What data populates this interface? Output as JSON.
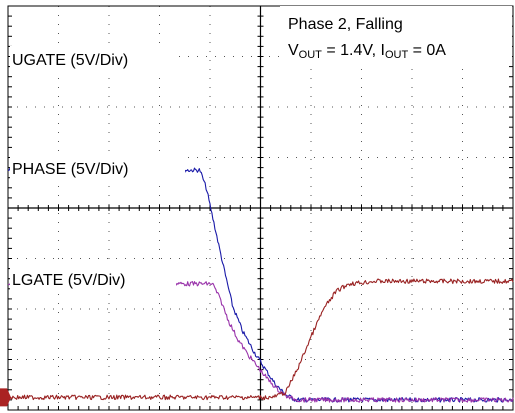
{
  "chart_data": {
    "type": "line",
    "title": "Phase 2, Falling",
    "conditions": {
      "v_symbol": "V",
      "v_sub": "OUT",
      "v_value": " = 1.4V, ",
      "i_symbol": "I",
      "i_sub": "OUT",
      "i_value": " = 0A"
    },
    "grid": {
      "divisions_x": 10,
      "divisions_y": 8,
      "minor_ticks_per_division": 5,
      "shown": true
    },
    "ground_marker_color": "#aa2222",
    "time_axis": {
      "min": 0,
      "max": 10,
      "unit": "div"
    },
    "volt_axis": {
      "min": 0,
      "max": 8,
      "unit": "div"
    },
    "series": [
      {
        "name": "UGATE (5V/Div)",
        "color": "#1a1aa8",
        "x": [
          0,
          7.6,
          7.85,
          8.2,
          8.55,
          8.9,
          9.3,
          9.75,
          10.2,
          10.6,
          11.0,
          11.4,
          20
        ],
        "y": [
          4.75,
          4.75,
          4.4,
          3.6,
          2.8,
          2.05,
          1.55,
          1.15,
          0.8,
          0.5,
          0.3,
          0.2,
          0.2
        ]
      },
      {
        "name": "PHASE (5V/Div)",
        "color": "#9933aa",
        "x": [
          0,
          8.1,
          8.4,
          8.75,
          9.1,
          9.5,
          9.9,
          10.3,
          10.7,
          11.1,
          11.5,
          20
        ],
        "y": [
          2.5,
          2.5,
          2.2,
          1.75,
          1.4,
          1.1,
          0.85,
          0.6,
          0.4,
          0.25,
          0.2,
          0.2
        ]
      },
      {
        "name": "LGATE (5V/Div)",
        "color": "#992222",
        "x": [
          0,
          10.5,
          11.0,
          11.5,
          12.0,
          12.5,
          13.0,
          13.5,
          14.0,
          14.5,
          20
        ],
        "y": [
          0.25,
          0.25,
          0.35,
          0.85,
          1.45,
          2.0,
          2.35,
          2.5,
          2.52,
          2.55,
          2.55
        ]
      }
    ]
  }
}
